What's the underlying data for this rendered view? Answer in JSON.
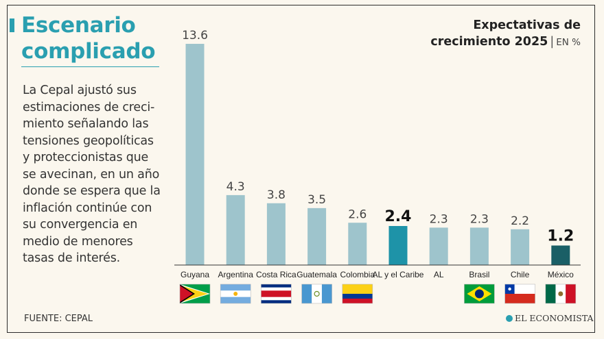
{
  "headline": [
    "Escenario",
    "complicado"
  ],
  "body_text": "La Cepal ajustó sus estimaciones de creci-miento señalando las tensiones geopolíticas y proteccionistas que se avecinan, en un año donde se espera que la inflación continúe con su convergencia en medio de menores tasas de interés.",
  "source": "FUENTE: CEPAL",
  "logo": "EL ECONOMISTA",
  "colors": {
    "accent": "#2a9fb0",
    "bar": "#9ec4cc",
    "highlight_bar": "#1e93a8",
    "mexico_bar": "#1a5f66",
    "text": "#222222"
  },
  "chart_data": {
    "type": "bar",
    "title": "Expectativas de crecimiento 2025",
    "title_lines": [
      "Expectativas de",
      "crecimiento 2025"
    ],
    "unit": "EN %",
    "categories": [
      "Guyana",
      "Argentina",
      "Costa Rica",
      "Guatemala",
      "Colombia",
      "AL y el Caribe",
      "AL",
      "Brasil",
      "Chile",
      "México"
    ],
    "values": [
      13.6,
      4.3,
      3.8,
      3.5,
      2.6,
      2.4,
      2.3,
      2.3,
      2.2,
      1.2
    ],
    "value_labels": [
      "13.6",
      "4.3",
      "3.8",
      "3.5",
      "2.6",
      "2.4",
      "2.3",
      "2.3",
      "2.2",
      "1.2"
    ],
    "bold_labels": [
      "AL y el Caribe",
      "México"
    ],
    "flags": [
      "guyana-flag-icon",
      "argentina-flag-icon",
      "costa-rica-flag-icon",
      "guatemala-flag-icon",
      "colombia-flag-icon",
      null,
      null,
      "brazil-flag-icon",
      "chile-flag-icon",
      "mexico-flag-icon"
    ],
    "ylim": [
      0,
      13.6
    ],
    "grid": false,
    "xlabel": "",
    "ylabel": ""
  }
}
